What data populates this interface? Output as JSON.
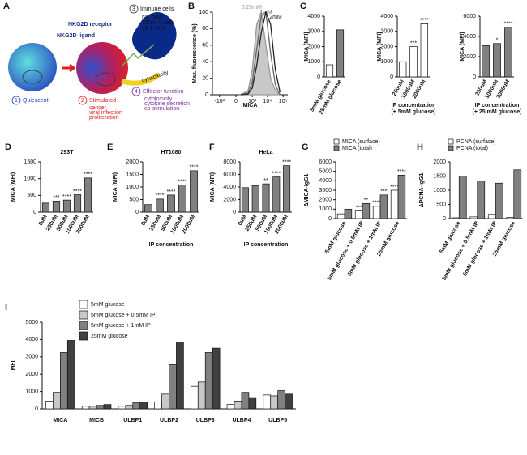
{
  "panel_a": {
    "label": "A",
    "receptor": "NKG2D receptor",
    "ligand": "NKG2D ligand",
    "immune": {
      "number": "3",
      "title": "Immune cells",
      "items": [
        "NK cells",
        "CD8+ T cells",
        "γδ T cells"
      ]
    },
    "quiescent": {
      "number": "1",
      "title": "Quiescent"
    },
    "stimulated": {
      "number": "2",
      "title": "Stimulated",
      "items": [
        "cancer",
        "viral infection",
        "proliferation"
      ]
    },
    "effector": {
      "number": "4",
      "title": "Effector function",
      "items": [
        "cytotoxicity",
        "cytokine secretion",
        "co-stimulation"
      ]
    },
    "arrow_label": "cytotoxicity"
  },
  "chart_data": [
    {
      "type": "line",
      "panel_label": "B",
      "ylabel": "Max. fluorescence (%)",
      "xlabel": [
        "MICA"
      ],
      "xscale": "symlog",
      "x": [
        100,
        500,
        1000,
        2000,
        4000,
        8000,
        16000,
        32000,
        64000
      ],
      "series": [
        {
          "name": "0.25mM",
          "color": "#9a9a9a",
          "values": [
            0,
            5,
            30,
            85,
            100,
            60,
            20,
            5,
            0
          ]
        },
        {
          "name": "1mM",
          "color": "#666666",
          "values": [
            0,
            2,
            15,
            55,
            95,
            100,
            50,
            12,
            0
          ]
        },
        {
          "name": "2mM",
          "color": "#222222",
          "values": [
            0,
            1,
            8,
            35,
            75,
            100,
            85,
            30,
            3
          ]
        }
      ],
      "xlim": [
        -3000,
        200000
      ],
      "xticks": [
        {
          "value": -1000,
          "label": "-10³"
        },
        0,
        {
          "value": 1000,
          "label": "10³"
        },
        {
          "value": 10000,
          "label": "10⁴"
        },
        {
          "value": 100000,
          "label": "10⁵"
        }
      ],
      "ylim": [
        0,
        100
      ],
      "yticks": [
        0,
        20,
        40,
        60,
        80,
        100
      ]
    },
    {
      "type": "bar",
      "panel_label": "C",
      "ylabel": "MICA (MFI)",
      "categories": [
        "5mM glucose",
        "25mM glucose"
      ],
      "series": [
        {
          "values": [
            800,
            3100
          ],
          "colors": [
            "#ffffff",
            "#808080"
          ]
        }
      ],
      "ylim": [
        0,
        4000
      ],
      "yticks": [
        0,
        1000,
        2000,
        3000,
        4000
      ]
    },
    {
      "type": "bar",
      "ylabel": "MICA (MFI)",
      "xlabel": [
        "IP concentration",
        "(+ 5mM glucose)"
      ],
      "categories": [
        "250uM",
        "1000uM",
        "2000uM"
      ],
      "series": [
        {
          "values": [
            1000,
            2000,
            3500
          ],
          "colors": [
            "#ffffff",
            "#ffffff",
            "#ffffff"
          ],
          "annotations": [
            null,
            "***",
            "****"
          ]
        }
      ],
      "ylim": [
        0,
        4000
      ],
      "yticks": [
        0,
        1000,
        2000,
        3000,
        4000
      ]
    },
    {
      "type": "bar",
      "ylabel": "MICA (MFI)",
      "xlabel": [
        "IP concentration",
        "(+ 25 mM glucose)"
      ],
      "categories": [
        "250uM",
        "1000uM",
        "2000uM"
      ],
      "series": [
        {
          "values": [
            3100,
            3300,
            4900
          ],
          "colors": [
            "#808080",
            "#808080",
            "#808080"
          ],
          "annotations": [
            null,
            "*",
            "****"
          ]
        }
      ],
      "ylim": [
        0,
        6000
      ],
      "yticks": [
        0,
        2000,
        4000,
        6000
      ]
    },
    {
      "type": "bar",
      "panel_label": "D",
      "title": "293T",
      "ylabel": "MICA (MFI)",
      "categories": [
        "0uM",
        "250uM",
        "500uM",
        "1000uM",
        "2000uM"
      ],
      "series": [
        {
          "values": [
            270,
            330,
            360,
            520,
            1020
          ],
          "colors": [
            "#808080",
            "#808080",
            "#808080",
            "#808080",
            "#808080"
          ],
          "annotations": [
            null,
            "***",
            "****",
            "****",
            "****"
          ]
        }
      ],
      "ylim": [
        0,
        1500
      ],
      "yticks": [
        0,
        500,
        1000,
        1500
      ]
    },
    {
      "type": "bar",
      "panel_label": "E",
      "title": "HT1080",
      "ylabel": "MICA (MFI)",
      "xlabel": [
        "IP concentration"
      ],
      "categories": [
        "0uM",
        "250uM",
        "500uM",
        "1000uM",
        "2000uM"
      ],
      "series": [
        {
          "values": [
            300,
            520,
            680,
            1080,
            1650
          ],
          "colors": [
            "#808080",
            "#808080",
            "#808080",
            "#808080",
            "#808080"
          ],
          "annotations": [
            null,
            "****",
            "****",
            "****",
            "****"
          ]
        }
      ],
      "ylim": [
        0,
        2000
      ],
      "yticks": [
        0,
        500,
        1000,
        1500,
        2000
      ]
    },
    {
      "type": "bar",
      "panel_label": "F",
      "title": "HeLa",
      "ylabel": "MICA (MFI)",
      "xlabel": [
        "IP concentration"
      ],
      "categories": [
        "0uM",
        "250uM",
        "500uM",
        "1000uM",
        "2000uM"
      ],
      "series": [
        {
          "values": [
            3900,
            4200,
            4500,
            5600,
            7400
          ],
          "colors": [
            "#808080",
            "#808080",
            "#808080",
            "#808080",
            "#808080"
          ],
          "annotations": [
            null,
            null,
            "**",
            "****",
            "****"
          ]
        }
      ],
      "ylim": [
        0,
        8000
      ],
      "yticks": [
        0,
        2000,
        4000,
        6000,
        8000
      ]
    },
    {
      "type": "bar",
      "panel_label": "G",
      "ylabel": "ΔMICA-IgG1",
      "legend": true,
      "categories": [
        "5mM glucose",
        "5mM glucose + 0.5mM IP",
        "5mM glucose + 1mM IP",
        "25mM glucose"
      ],
      "series": [
        {
          "name": "MICA (surface)",
          "color": "#ffffff",
          "values": [
            500,
            800,
            1300,
            3000
          ],
          "annotations": [
            null,
            "***",
            "****",
            "****"
          ]
        },
        {
          "name": "MICA (total)",
          "color": "#808080",
          "values": [
            1000,
            1600,
            2500,
            4600
          ],
          "annotations": [
            null,
            "**",
            "***",
            "****"
          ]
        }
      ],
      "ylim": [
        0,
        6000
      ],
      "yticks": [
        0,
        1000,
        2000,
        3000,
        4000,
        5000,
        6000
      ]
    },
    {
      "type": "bar",
      "panel_label": "H",
      "ylabel": "ΔPCNA-IgG1",
      "legend": true,
      "categories": [
        "5mM glucose",
        "5mM glucose + 0.5mM IP",
        "5mM glucose + 1mM IP",
        "25mM glucose"
      ],
      "series": [
        {
          "name": "PCNA (surface)",
          "color": "#ffffff",
          "values": [
            30,
            60,
            150,
            40
          ]
        },
        {
          "name": "PCNA (total)",
          "color": "#808080",
          "values": [
            1500,
            1320,
            1250,
            1720
          ]
        }
      ],
      "ylim": [
        0,
        2000
      ],
      "yticks": [
        0,
        500,
        1000,
        1500,
        2000
      ]
    },
    {
      "type": "bar",
      "panel_label": "I",
      "ylabel": "MFI",
      "legend": true,
      "categories": [
        "MICA",
        "MICB",
        "ULBP1",
        "ULBP2",
        "ULBP3",
        "ULBP4",
        "ULBP5"
      ],
      "series": [
        {
          "name": "5mM glucose",
          "color": "#ffffff",
          "values": [
            450,
            150,
            150,
            400,
            1300,
            250,
            800
          ]
        },
        {
          "name": "5mM glucose + 0.5mM IP",
          "color": "#c8c8c8",
          "values": [
            950,
            150,
            200,
            850,
            1550,
            450,
            750
          ]
        },
        {
          "name": "5mM glucose + 1mM IP",
          "color": "#808080",
          "values": [
            3250,
            200,
            350,
            2550,
            3250,
            950,
            1050
          ]
        },
        {
          "name": "25mM glucose",
          "color": "#404040",
          "values": [
            3950,
            250,
            350,
            3850,
            3500,
            650,
            850
          ]
        }
      ],
      "ylim": [
        0,
        5000
      ],
      "yticks": [
        0,
        1000,
        2000,
        3000,
        4000,
        5000
      ]
    }
  ]
}
